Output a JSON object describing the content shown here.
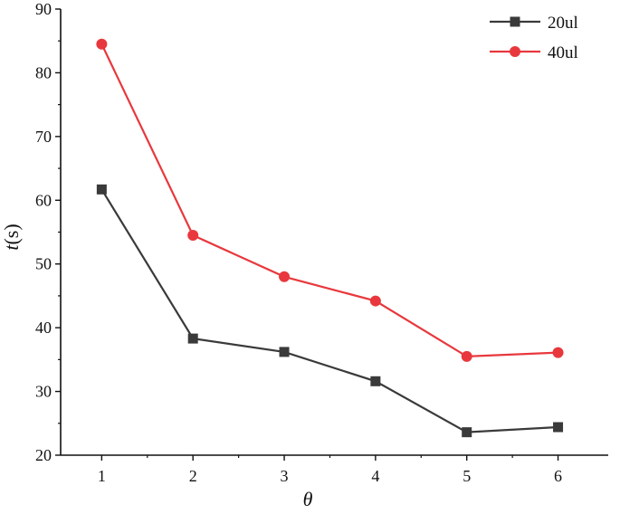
{
  "chart_data": {
    "type": "line",
    "title": "",
    "xlabel": "θ",
    "ylabel_italic": "t",
    "ylabel_rest": "(s)",
    "x": [
      1,
      2,
      3,
      4,
      5,
      6
    ],
    "x_ticks": [
      1,
      2,
      3,
      4,
      5,
      6
    ],
    "xlim": [
      0.55,
      6.55
    ],
    "y_ticks": [
      20,
      30,
      40,
      50,
      60,
      70,
      80,
      90
    ],
    "ylim": [
      20,
      90
    ],
    "grid": false,
    "legend_position": "top-right",
    "series": [
      {
        "name": "20ul",
        "values": [
          61.7,
          38.3,
          36.2,
          31.6,
          23.6,
          24.4
        ],
        "color": "#3a3a3a",
        "marker": "square"
      },
      {
        "name": "40ul",
        "values": [
          84.5,
          54.5,
          48.0,
          44.2,
          35.5,
          36.1
        ],
        "color": "#e8383d",
        "marker": "circle"
      }
    ]
  }
}
